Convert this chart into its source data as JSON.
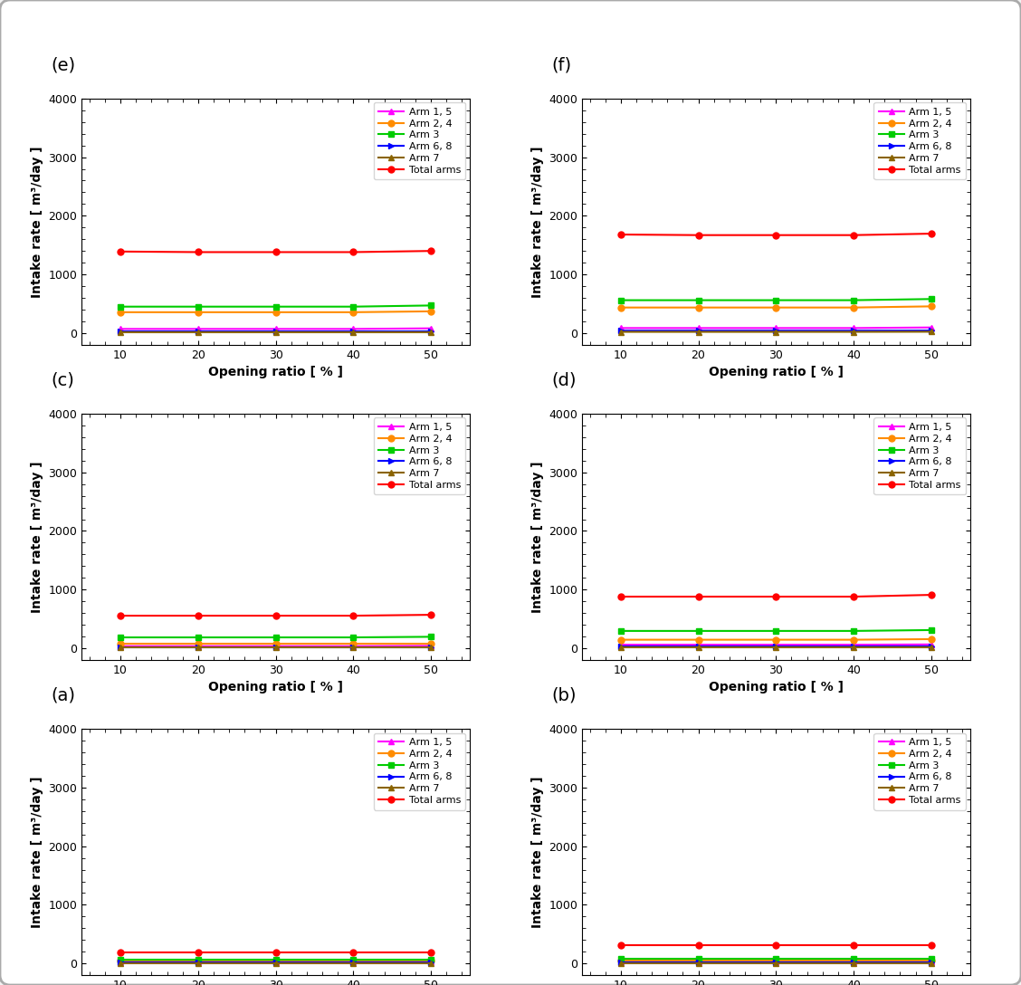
{
  "x": [
    10,
    20,
    30,
    40,
    50
  ],
  "subplots": [
    {
      "label": "(a)",
      "series": {
        "Arm 1, 5": [
          30,
          30,
          30,
          30,
          30
        ],
        "Arm 2, 4": [
          50,
          50,
          50,
          50,
          50
        ],
        "Arm 3": [
          65,
          65,
          65,
          65,
          65
        ],
        "Arm 6, 8": [
          20,
          20,
          20,
          20,
          20
        ],
        "Arm 7": [
          10,
          10,
          10,
          10,
          10
        ],
        "Total arms": [
          195,
          195,
          195,
          195,
          195
        ]
      }
    },
    {
      "label": "(b)",
      "series": {
        "Arm 1, 5": [
          30,
          30,
          30,
          30,
          30
        ],
        "Arm 2, 4": [
          55,
          55,
          55,
          55,
          55
        ],
        "Arm 3": [
          75,
          75,
          75,
          75,
          75
        ],
        "Arm 6, 8": [
          20,
          20,
          20,
          20,
          20
        ],
        "Arm 7": [
          10,
          10,
          10,
          10,
          10
        ],
        "Total arms": [
          305,
          305,
          305,
          305,
          305
        ]
      }
    },
    {
      "label": "(c)",
      "series": {
        "Arm 1, 5": [
          35,
          35,
          35,
          35,
          40
        ],
        "Arm 2, 4": [
          80,
          80,
          80,
          80,
          80
        ],
        "Arm 3": [
          185,
          185,
          185,
          185,
          195
        ],
        "Arm 6, 8": [
          20,
          20,
          20,
          20,
          20
        ],
        "Arm 7": [
          10,
          10,
          10,
          10,
          10
        ],
        "Total arms": [
          555,
          555,
          555,
          555,
          570
        ]
      }
    },
    {
      "label": "(d)",
      "series": {
        "Arm 1, 5": [
          60,
          60,
          60,
          60,
          65
        ],
        "Arm 2, 4": [
          145,
          145,
          145,
          145,
          155
        ],
        "Arm 3": [
          295,
          295,
          295,
          295,
          310
        ],
        "Arm 6, 8": [
          30,
          30,
          30,
          30,
          30
        ],
        "Arm 7": [
          15,
          15,
          15,
          15,
          15
        ],
        "Total arms": [
          880,
          880,
          880,
          880,
          910
        ]
      }
    },
    {
      "label": "(e)",
      "series": {
        "Arm 1, 5": [
          70,
          70,
          70,
          70,
          80
        ],
        "Arm 2, 4": [
          355,
          355,
          355,
          355,
          370
        ],
        "Arm 3": [
          450,
          450,
          450,
          450,
          470
        ],
        "Arm 6, 8": [
          35,
          35,
          35,
          35,
          35
        ],
        "Arm 7": [
          18,
          18,
          18,
          18,
          18
        ],
        "Total arms": [
          1390,
          1380,
          1380,
          1380,
          1400
        ]
      }
    },
    {
      "label": "(f)",
      "series": {
        "Arm 1, 5": [
          85,
          85,
          85,
          85,
          95
        ],
        "Arm 2, 4": [
          435,
          435,
          435,
          435,
          455
        ],
        "Arm 3": [
          560,
          560,
          560,
          560,
          580
        ],
        "Arm 6, 8": [
          40,
          40,
          40,
          40,
          42
        ],
        "Arm 7": [
          20,
          20,
          20,
          20,
          22
        ],
        "Total arms": [
          1680,
          1670,
          1670,
          1670,
          1695
        ]
      }
    }
  ],
  "series_colors": {
    "Arm 1, 5": "#ff00ff",
    "Arm 2, 4": "#ff8c00",
    "Arm 3": "#00cc00",
    "Arm 6, 8": "#0000ff",
    "Arm 7": "#8b6400",
    "Total arms": "#ff0000"
  },
  "series_markers": {
    "Arm 1, 5": "^",
    "Arm 2, 4": "o",
    "Arm 3": "s",
    "Arm 6, 8": ">",
    "Arm 7": "^",
    "Total arms": "o"
  },
  "xlabel": "Opening ratio [ % ]",
  "ylabel": "Intake rate [ m³/day ]",
  "ylim": [
    -200,
    4000
  ],
  "yticks": [
    0,
    1000,
    2000,
    3000,
    4000
  ],
  "xticks": [
    10,
    20,
    30,
    40,
    50
  ],
  "label_fontsize": 14,
  "axis_label_fontsize": 10,
  "tick_fontsize": 9,
  "legend_fontsize": 8,
  "fig_background": "#f0f0f0",
  "fig_border_color": "#aaaaaa",
  "fig_border_lw": 2.0
}
